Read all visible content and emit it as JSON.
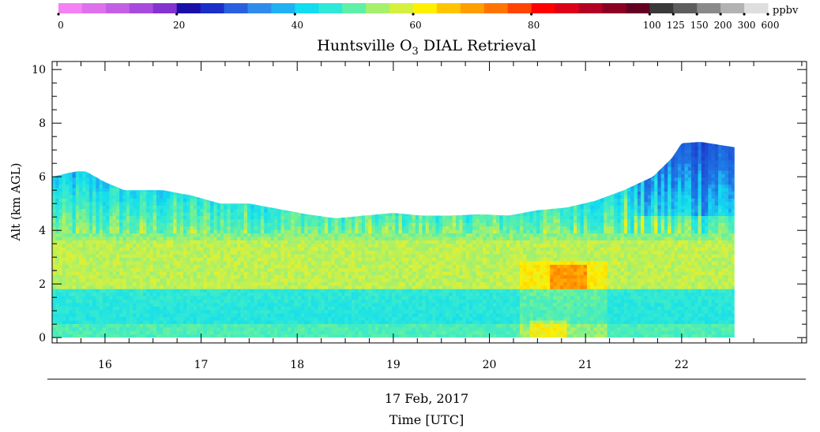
{
  "chart_data": {
    "type": "heatmap",
    "title_main": "Huntsville O",
    "title_sub": "3",
    "title_rest": " DIAL Retrieval",
    "ylabel": "Alt (km AGL)",
    "date": "17 Feb, 2017",
    "xlabel": "Time [UTC]",
    "xlim": [
      15.45,
      23.3
    ],
    "ylim": [
      -0.2,
      10.3
    ],
    "xticks": [
      16,
      17,
      18,
      19,
      20,
      21,
      22
    ],
    "yticks": [
      0,
      2,
      4,
      6,
      8,
      10
    ],
    "data_x_range": [
      15.45,
      22.55
    ],
    "data_y_range": [
      0,
      7.5
    ],
    "data_top_altitude": {
      "x": [
        15.45,
        15.7,
        15.8,
        16.0,
        16.2,
        16.6,
        16.9,
        17.2,
        17.5,
        17.8,
        18.1,
        18.4,
        18.7,
        19.0,
        19.3,
        19.6,
        19.9,
        20.2,
        20.5,
        20.8,
        21.1,
        21.4,
        21.7,
        21.9,
        22.0,
        22.2,
        22.55
      ],
      "alt": [
        6.0,
        6.2,
        6.2,
        5.8,
        5.5,
        5.5,
        5.3,
        5.0,
        5.0,
        4.8,
        4.6,
        4.45,
        4.55,
        4.65,
        4.55,
        4.55,
        4.6,
        4.55,
        4.75,
        4.85,
        5.1,
        5.5,
        6.0,
        6.7,
        7.25,
        7.3,
        7.1
      ]
    },
    "colorbar": {
      "unit": "ppbv",
      "tick_labels": [
        "0",
        "20",
        "40",
        "60",
        "80",
        "100",
        "125",
        "150",
        "200",
        "300",
        "600"
      ],
      "colors": [
        "#f482f2",
        "#de72ec",
        "#c35fe3",
        "#a64bdb",
        "#8433d0",
        "#1a10a8",
        "#1a2ec8",
        "#2a5fdf",
        "#2f8ceb",
        "#1fb1f2",
        "#11dcf0",
        "#2ee8d8",
        "#5ef0a6",
        "#a6f06c",
        "#d6f03e",
        "#fff000",
        "#ffc400",
        "#ff9e00",
        "#ff7400",
        "#ff4400",
        "#ff0000",
        "#dc0018",
        "#b40024",
        "#8c0024",
        "#640024",
        "#3a3a3a",
        "#5e5e5e",
        "#8a8a8a",
        "#b2b2b2",
        "#dedede"
      ]
    }
  }
}
